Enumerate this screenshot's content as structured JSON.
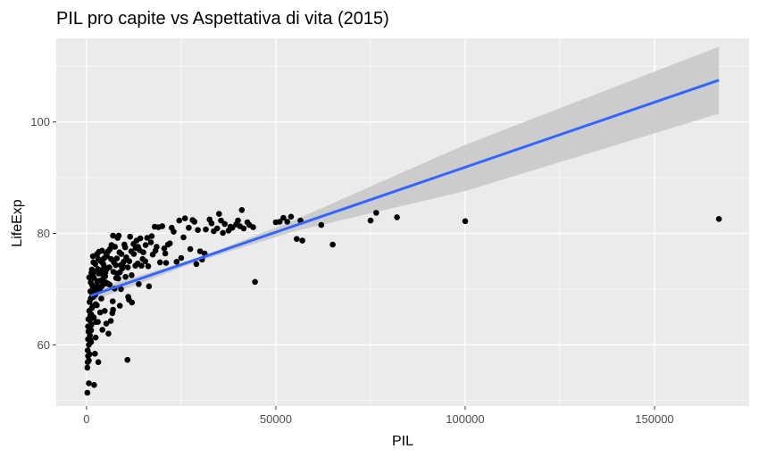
{
  "chart_data": {
    "type": "scatter",
    "title": "PIL pro capite vs Aspettativa di vita (2015)",
    "xlabel": "PIL",
    "ylabel": "LifeExp",
    "xlim": [
      -8000,
      175000
    ],
    "ylim": [
      49,
      115
    ],
    "x_ticks": [
      0,
      50000,
      100000,
      150000
    ],
    "x_tick_labels": [
      "0",
      "50000",
      "100000",
      "150000"
    ],
    "y_ticks": [
      60,
      80,
      100
    ],
    "y_tick_labels": [
      "60",
      "80",
      "100"
    ],
    "grid": true,
    "colors": {
      "panel": "#ebebeb",
      "grid": "#ffffff",
      "points": "#000000",
      "fit_line": "#3366ff",
      "confidence_band": "#c7c7c7"
    },
    "fit": {
      "method": "lm",
      "line": [
        [
          1000,
          68.8
        ],
        [
          167000,
          107.5
        ]
      ],
      "band_upper": [
        [
          1000,
          69.8
        ],
        [
          30000,
          75.7
        ],
        [
          55000,
          82.4
        ],
        [
          100000,
          95.9
        ],
        [
          167000,
          113.5
        ]
      ],
      "band_lower": [
        [
          1000,
          67.7
        ],
        [
          30000,
          75.1
        ],
        [
          55000,
          80.4
        ],
        [
          100000,
          87.6
        ],
        [
          167000,
          101.5
        ]
      ]
    },
    "points": [
      [
        167000,
        82.6
      ],
      [
        100000,
        82.2
      ],
      [
        82000,
        82.9
      ],
      [
        76500,
        83.7
      ],
      [
        75000,
        82.3
      ],
      [
        65000,
        78.0
      ],
      [
        62000,
        81.5
      ],
      [
        57000,
        78.7
      ],
      [
        56500,
        82.3
      ],
      [
        55500,
        79.0
      ],
      [
        54000,
        83.0
      ],
      [
        53000,
        82.1
      ],
      [
        52000,
        82.8
      ],
      [
        51000,
        82.1
      ],
      [
        50000,
        82.0
      ],
      [
        44500,
        71.3
      ],
      [
        44000,
        81.1
      ],
      [
        43000,
        81.5
      ],
      [
        42500,
        82.0
      ],
      [
        41500,
        80.9
      ],
      [
        41000,
        84.2
      ],
      [
        40500,
        81.3
      ],
      [
        40000,
        82.3
      ],
      [
        39500,
        81.6
      ],
      [
        38500,
        81.0
      ],
      [
        38000,
        81.2
      ],
      [
        37500,
        80.5
      ],
      [
        36500,
        81.7
      ],
      [
        35500,
        82.3
      ],
      [
        35000,
        83.5
      ],
      [
        34500,
        80.9
      ],
      [
        33000,
        81.8
      ],
      [
        32500,
        82.5
      ],
      [
        31500,
        80.7
      ],
      [
        30500,
        75.3
      ],
      [
        30000,
        76.8
      ],
      [
        29000,
        74.5
      ],
      [
        28500,
        82.1
      ],
      [
        28000,
        82.4
      ],
      [
        27000,
        81.0
      ],
      [
        26000,
        82.7
      ],
      [
        25000,
        75.6
      ],
      [
        24500,
        82.3
      ],
      [
        23000,
        80.3
      ],
      [
        22500,
        81.0
      ],
      [
        21500,
        78.0
      ],
      [
        21000,
        74.7
      ],
      [
        20500,
        77.3
      ],
      [
        20000,
        81.3
      ],
      [
        19000,
        81.1
      ],
      [
        18500,
        77.6
      ],
      [
        18000,
        81.2
      ],
      [
        17500,
        76.2
      ],
      [
        17000,
        78.4
      ],
      [
        16500,
        70.5
      ],
      [
        16000,
        79.2
      ],
      [
        15500,
        75.0
      ],
      [
        15000,
        76.6
      ],
      [
        14500,
        74.2
      ],
      [
        14000,
        77.0
      ],
      [
        13500,
        74.6
      ],
      [
        13200,
        78.7
      ],
      [
        13000,
        77.4
      ],
      [
        12500,
        76.3
      ],
      [
        12000,
        67.6
      ],
      [
        11800,
        76.8
      ],
      [
        11500,
        79.4
      ],
      [
        11000,
        68.6
      ],
      [
        10800,
        57.3
      ],
      [
        10500,
        75.7
      ],
      [
        10200,
        77.5
      ],
      [
        10000,
        78.0
      ],
      [
        9500,
        74.3
      ],
      [
        9200,
        76.3
      ],
      [
        9000,
        74.3
      ],
      [
        8800,
        73.0
      ],
      [
        8500,
        79.6
      ],
      [
        8200,
        79.2
      ],
      [
        8000,
        75.5
      ],
      [
        7800,
        72.0
      ],
      [
        7500,
        77.6
      ],
      [
        7200,
        74.8
      ],
      [
        7000,
        79.6
      ],
      [
        6900,
        67.8
      ],
      [
        6800,
        65.7
      ],
      [
        6500,
        75.4
      ],
      [
        6200,
        77.2
      ],
      [
        6000,
        73.9
      ],
      [
        5800,
        62.0
      ],
      [
        5600,
        71.0
      ],
      [
        5400,
        75.9
      ],
      [
        5200,
        76.3
      ],
      [
        5000,
        73.0
      ],
      [
        4900,
        72.3
      ],
      [
        4800,
        66.1
      ],
      [
        4600,
        75.5
      ],
      [
        4400,
        74.5
      ],
      [
        4200,
        71.7
      ],
      [
        4000,
        70.5
      ],
      [
        3800,
        75.0
      ],
      [
        3600,
        65.8
      ],
      [
        3400,
        71.5
      ],
      [
        3200,
        72.8
      ],
      [
        3000,
        73.6
      ],
      [
        2900,
        70.5
      ],
      [
        2800,
        76.3
      ],
      [
        2700,
        67.1
      ],
      [
        2500,
        64.1
      ],
      [
        2300,
        74.5
      ],
      [
        2200,
        69.6
      ],
      [
        2000,
        52.8
      ],
      [
        2000,
        72.0
      ],
      [
        1900,
        69.4
      ],
      [
        1800,
        74.8
      ],
      [
        1700,
        70.1
      ],
      [
        1600,
        66.9
      ],
      [
        1500,
        68.8
      ],
      [
        1400,
        73.5
      ],
      [
        1300,
        72.9
      ],
      [
        1200,
        65.5
      ],
      [
        1100,
        71.2
      ],
      [
        1000,
        69.6
      ],
      [
        900,
        62.8
      ],
      [
        800,
        67.7
      ],
      [
        700,
        72.1
      ],
      [
        600,
        60.0
      ],
      [
        500,
        64.6
      ],
      [
        400,
        58.0
      ],
      [
        300,
        56.9
      ],
      [
        200,
        51.4
      ],
      [
        200,
        55.9
      ],
      [
        400,
        61.0
      ],
      [
        500,
        62.4
      ],
      [
        700,
        66.1
      ],
      [
        800,
        58.3
      ],
      [
        900,
        61.7
      ],
      [
        1000,
        65.3
      ],
      [
        1100,
        68.3
      ],
      [
        1200,
        60.5
      ],
      [
        1300,
        63.6
      ],
      [
        1400,
        66.6
      ],
      [
        1500,
        70.7
      ],
      [
        1600,
        72.4
      ],
      [
        1700,
        75.9
      ],
      [
        1800,
        68.6
      ],
      [
        1900,
        64.9
      ],
      [
        2100,
        73.1
      ],
      [
        2300,
        69.0
      ],
      [
        2400,
        67.3
      ],
      [
        2600,
        70.2
      ],
      [
        2800,
        71.3
      ],
      [
        3100,
        75.4
      ],
      [
        3300,
        76.7
      ],
      [
        3500,
        69.9
      ],
      [
        3700,
        73.4
      ],
      [
        3900,
        68.3
      ],
      [
        4100,
        76.9
      ],
      [
        4300,
        72.6
      ],
      [
        4500,
        70.9
      ],
      [
        4700,
        74.0
      ],
      [
        5100,
        71.2
      ],
      [
        5300,
        73.6
      ],
      [
        5700,
        76.8
      ],
      [
        6100,
        70.8
      ],
      [
        6400,
        64.3
      ],
      [
        6600,
        77.9
      ],
      [
        7100,
        73.1
      ],
      [
        7400,
        70.1
      ],
      [
        7700,
        74.3
      ],
      [
        8100,
        72.8
      ],
      [
        8400,
        71.9
      ],
      [
        8700,
        76.6
      ],
      [
        9100,
        70.0
      ],
      [
        9400,
        73.7
      ],
      [
        9800,
        74.9
      ],
      [
        10300,
        72.2
      ],
      [
        10900,
        73.9
      ],
      [
        11300,
        75.0
      ],
      [
        11900,
        72.5
      ],
      [
        12400,
        78.1
      ],
      [
        12900,
        74.2
      ],
      [
        13600,
        77.6
      ],
      [
        14200,
        79.1
      ],
      [
        14800,
        75.4
      ],
      [
        15600,
        77.9
      ],
      [
        16300,
        74.1
      ],
      [
        17200,
        79.5
      ],
      [
        18200,
        76.9
      ],
      [
        19400,
        74.8
      ],
      [
        20800,
        76.4
      ],
      [
        22000,
        78.2
      ],
      [
        23800,
        74.9
      ],
      [
        25600,
        79.3
      ],
      [
        27400,
        77.2
      ],
      [
        29400,
        80.6
      ],
      [
        31200,
        76.4
      ],
      [
        33600,
        80.4
      ],
      [
        36000,
        80.1
      ],
      [
        600,
        53.1
      ],
      [
        300,
        59.0
      ],
      [
        400,
        63.3
      ],
      [
        1200,
        62.6
      ],
      [
        2200,
        58.4
      ],
      [
        3100,
        56.9
      ],
      [
        600,
        57.2
      ],
      [
        900,
        64.4
      ],
      [
        1000,
        60.9
      ],
      [
        1700,
        65.0
      ],
      [
        2400,
        61.3
      ],
      [
        3000,
        64.1
      ],
      [
        4200,
        62.7
      ],
      [
        5200,
        63.8
      ],
      [
        7000,
        66.3
      ],
      [
        8800,
        67.0
      ],
      [
        11200,
        68.1
      ],
      [
        13800,
        70.9
      ]
    ]
  }
}
